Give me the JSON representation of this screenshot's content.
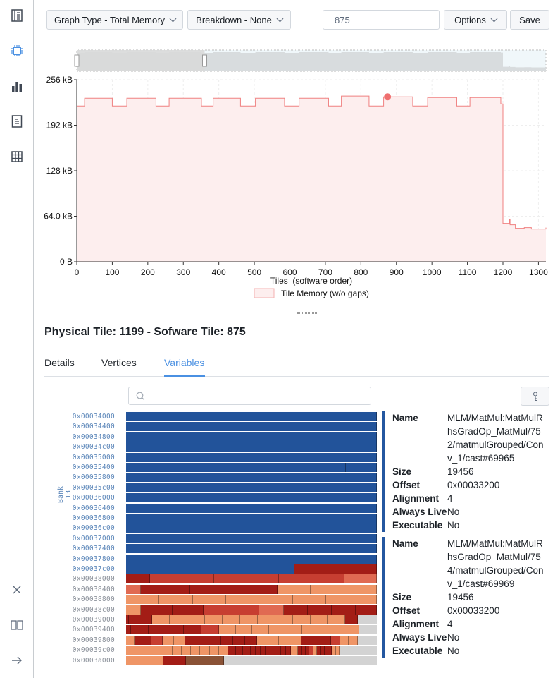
{
  "sidebar": {
    "items": [
      {
        "icon": "report-icon",
        "active": false
      },
      {
        "icon": "chip-icon",
        "active": true
      },
      {
        "icon": "bar-chart-icon",
        "active": false
      },
      {
        "icon": "document-icon",
        "active": false
      },
      {
        "icon": "table-icon",
        "active": false
      }
    ],
    "bottom": [
      {
        "icon": "close-icon"
      },
      {
        "icon": "book-icon"
      },
      {
        "icon": "arrow-right-icon"
      }
    ]
  },
  "toolbar": {
    "graph_type": "Graph Type - Total Memory",
    "breakdown": "Breakdown - None",
    "tile_value": "875",
    "options": "Options",
    "save": "Save"
  },
  "chart_data": {
    "type": "area",
    "xlabel": "Tiles  (software order)",
    "ylabel": "",
    "xlim": [
      0,
      1321
    ],
    "ylim": [
      0,
      256
    ],
    "xticks": [
      0,
      100,
      200,
      300,
      400,
      500,
      600,
      700,
      800,
      900,
      1000,
      1100,
      1200,
      1300
    ],
    "yticks": [
      {
        "v": 0,
        "label": "0 B"
      },
      {
        "v": 64,
        "label": "64.0 kB"
      },
      {
        "v": 128,
        "label": "128 kB"
      },
      {
        "v": 192,
        "label": "192 kB"
      },
      {
        "v": 256,
        "label": "256 kB"
      }
    ],
    "grid": true,
    "legend": "bottom",
    "series": [
      {
        "name": "Tile Memory (w/o gaps)",
        "color": "#f08080",
        "fill": "#fdeeee",
        "step": true,
        "points": [
          [
            0,
            219
          ],
          [
            22,
            230
          ],
          [
            100,
            219
          ],
          [
            141,
            230
          ],
          [
            223,
            219
          ],
          [
            260,
            230
          ],
          [
            351,
            219
          ],
          [
            384,
            230
          ],
          [
            461,
            219
          ],
          [
            503,
            230
          ],
          [
            585,
            219
          ],
          [
            626,
            230
          ],
          [
            709,
            219
          ],
          [
            745,
            233
          ],
          [
            823,
            219
          ],
          [
            864,
            232
          ],
          [
            946,
            219
          ],
          [
            988,
            231
          ],
          [
            1070,
            219
          ],
          [
            1107,
            231
          ],
          [
            1194,
            222
          ],
          [
            1200,
            54
          ],
          [
            1215,
            54
          ],
          [
            1218,
            60
          ],
          [
            1220,
            52
          ],
          [
            1235,
            47
          ],
          [
            1260,
            48
          ],
          [
            1280,
            46
          ],
          [
            1321,
            48
          ]
        ]
      }
    ],
    "selected_point": {
      "x": 875,
      "y": 232
    },
    "brush_range": [
      0,
      360
    ]
  },
  "tile": {
    "heading": "Physical Tile: 1199 - Sofware Tile: 875"
  },
  "tabs": [
    {
      "label": "Details"
    },
    {
      "label": "Vertices"
    },
    {
      "label": "Variables",
      "active": true
    }
  ],
  "variables": {
    "search_placeholder": "",
    "bank_label": "Bank 13",
    "colors": {
      "B": "#22539a",
      "D": "#a31d16",
      "M": "#c73e31",
      "L": "#e06a52",
      "P": "#ef9566",
      "W": "#8a5236",
      "G": "#d3d3d3"
    },
    "rows": [
      {
        "addr": "0x00034000",
        "bank": true,
        "segs": [
          [
            1,
            "B"
          ]
        ]
      },
      {
        "addr": "0x00034400",
        "bank": true,
        "segs": [
          [
            1,
            "B"
          ]
        ]
      },
      {
        "addr": "0x00034800",
        "bank": true,
        "segs": [
          [
            1,
            "B"
          ]
        ]
      },
      {
        "addr": "0x00034c00",
        "bank": true,
        "segs": [
          [
            1,
            "B"
          ]
        ]
      },
      {
        "addr": "0x00035000",
        "bank": true,
        "segs": [
          [
            1,
            "B"
          ]
        ]
      },
      {
        "addr": "0x00035400",
        "bank": true,
        "segs": [
          [
            0.875,
            "B"
          ],
          [
            0.125,
            "B"
          ]
        ]
      },
      {
        "addr": "0x00035800",
        "bank": true,
        "segs": [
          [
            1,
            "B"
          ]
        ]
      },
      {
        "addr": "0x00035c00",
        "bank": true,
        "segs": [
          [
            1,
            "B"
          ]
        ]
      },
      {
        "addr": "0x00036000",
        "bank": true,
        "segs": [
          [
            1,
            "B"
          ]
        ]
      },
      {
        "addr": "0x00036400",
        "bank": true,
        "segs": [
          [
            1,
            "B"
          ]
        ]
      },
      {
        "addr": "0x00036800",
        "bank": true,
        "segs": [
          [
            1,
            "B"
          ]
        ]
      },
      {
        "addr": "0x00036c00",
        "bank": true,
        "segs": [
          [
            1,
            "B"
          ]
        ]
      },
      {
        "addr": "0x00037000",
        "bank": true,
        "segs": [
          [
            1,
            "B"
          ]
        ]
      },
      {
        "addr": "0x00037400",
        "bank": true,
        "segs": [
          [
            1,
            "B"
          ]
        ]
      },
      {
        "addr": "0x00037800",
        "bank": true,
        "segs": [
          [
            1,
            "B"
          ]
        ]
      },
      {
        "addr": "0x00037c00",
        "bank": true,
        "segs": [
          [
            0.5,
            "B"
          ],
          [
            0.17,
            "B"
          ],
          [
            0.33,
            "D"
          ]
        ]
      },
      {
        "addr": "0x00038000",
        "bank": false,
        "segs": [
          [
            0.095,
            "D"
          ],
          [
            0.255,
            "M"
          ],
          [
            0.26,
            "M"
          ],
          [
            0.26,
            "M"
          ],
          [
            0.13,
            "L"
          ]
        ]
      },
      {
        "addr": "0x00038400",
        "bank": false,
        "segs": [
          [
            0.06,
            "L"
          ],
          [
            0.195,
            "D"
          ],
          [
            0.19,
            "D"
          ],
          [
            0.16,
            "D"
          ],
          [
            0.13,
            "P"
          ],
          [
            0.135,
            "P"
          ],
          [
            0.13,
            "P"
          ]
        ]
      },
      {
        "addr": "0x00038800",
        "bank": false,
        "segs": [
          [
            0.133,
            "P"
          ],
          [
            0.133,
            "P"
          ],
          [
            0.133,
            "P"
          ],
          [
            0.133,
            "P"
          ],
          [
            0.133,
            "P"
          ],
          [
            0.133,
            "P"
          ],
          [
            0.133,
            "P"
          ],
          [
            0.069,
            "P"
          ]
        ]
      },
      {
        "addr": "0x00038c00",
        "bank": false,
        "segs": [
          [
            0.06,
            "P"
          ],
          [
            0.125,
            "D"
          ],
          [
            0.125,
            "D"
          ],
          [
            0.115,
            "M"
          ],
          [
            0.105,
            "M"
          ],
          [
            0.1,
            "L"
          ],
          [
            0.095,
            "D"
          ],
          [
            0.095,
            "D"
          ],
          [
            0.095,
            "D"
          ],
          [
            0.085,
            "D"
          ]
        ]
      },
      {
        "addr": "0x00039000",
        "bank": false,
        "segs": [
          [
            0.012,
            "D"
          ],
          [
            0.093,
            "D"
          ],
          [
            0.07,
            "P"
          ],
          [
            0.07,
            "P"
          ],
          [
            0.07,
            "P"
          ],
          [
            0.07,
            "P"
          ],
          [
            0.07,
            "P"
          ],
          [
            0.07,
            "P"
          ],
          [
            0.07,
            "P"
          ],
          [
            0.07,
            "P"
          ],
          [
            0.07,
            "P"
          ],
          [
            0.07,
            "P"
          ],
          [
            0.07,
            "P"
          ],
          [
            0.05,
            "D"
          ]
        ]
      },
      {
        "addr": "0x00039400",
        "bank": false,
        "segs": [
          [
            0.02,
            "D"
          ],
          [
            0.07,
            "D"
          ],
          [
            0.07,
            "D"
          ],
          [
            0.07,
            "D"
          ],
          [
            0.07,
            "D"
          ],
          [
            0.07,
            "M"
          ],
          [
            0.068,
            "P"
          ],
          [
            0.066,
            "P"
          ],
          [
            0.066,
            "P"
          ],
          [
            0.066,
            "P"
          ],
          [
            0.066,
            "P"
          ],
          [
            0.066,
            "P"
          ],
          [
            0.066,
            "P"
          ],
          [
            0.066,
            "P"
          ],
          [
            0.03,
            "P"
          ]
        ]
      },
      {
        "addr": "0x00039800",
        "bank": false,
        "segs": [
          [
            0.035,
            "P"
          ],
          [
            0.065,
            "D"
          ],
          [
            0.045,
            "M"
          ],
          [
            0.045,
            "P"
          ],
          [
            0.045,
            "P"
          ],
          [
            0.048,
            "D"
          ],
          [
            0.048,
            "D"
          ],
          [
            0.048,
            "D"
          ],
          [
            0.048,
            "D"
          ],
          [
            0.048,
            "D"
          ],
          [
            0.048,
            "D"
          ],
          [
            0.044,
            "P"
          ],
          [
            0.044,
            "P"
          ],
          [
            0.044,
            "P"
          ],
          [
            0.044,
            "P"
          ],
          [
            0.04,
            "D"
          ],
          [
            0.04,
            "D"
          ],
          [
            0.04,
            "D"
          ],
          [
            0.035,
            "M"
          ],
          [
            0.035,
            "P"
          ],
          [
            0.035,
            "P"
          ]
        ]
      },
      {
        "addr": "0x00039c00",
        "bank": false,
        "segs": [
          [
            0.037,
            "P"
          ],
          [
            0.037,
            "P"
          ],
          [
            0.037,
            "P"
          ],
          [
            0.037,
            "P"
          ],
          [
            0.037,
            "P"
          ],
          [
            0.037,
            "P"
          ],
          [
            0.037,
            "P"
          ],
          [
            0.037,
            "P"
          ],
          [
            0.037,
            "P"
          ],
          [
            0.037,
            "P"
          ],
          [
            0.037,
            "P"
          ],
          [
            0.03,
            "D"
          ],
          [
            0.03,
            "D"
          ],
          [
            0.03,
            "D"
          ],
          [
            0.02,
            "D"
          ],
          [
            0.02,
            "D"
          ],
          [
            0.02,
            "D"
          ],
          [
            0.02,
            "D"
          ],
          [
            0.02,
            "D"
          ],
          [
            0.02,
            "D"
          ],
          [
            0.02,
            "D"
          ],
          [
            0.02,
            "D"
          ],
          [
            0.03,
            "P"
          ],
          [
            0.015,
            "D"
          ],
          [
            0.015,
            "D"
          ],
          [
            0.015,
            "D"
          ],
          [
            0.015,
            "M"
          ],
          [
            0.015,
            "P"
          ],
          [
            0.015,
            "D"
          ],
          [
            0.015,
            "D"
          ],
          [
            0.015,
            "D"
          ],
          [
            0.015,
            "D"
          ],
          [
            0.015,
            "P"
          ],
          [
            0.015,
            "P"
          ]
        ]
      },
      {
        "addr": "0x0003a000",
        "bank": false,
        "segs": [
          [
            0.15,
            "P"
          ],
          [
            0.09,
            "D"
          ],
          [
            0.15,
            "W"
          ],
          [
            0.61,
            "G"
          ]
        ]
      }
    ],
    "details": [
      {
        "fields": [
          {
            "k": "Name",
            "v": "MLM/MatMul:MatMulRhsGradOp_MatMul/752/matmulGrouped/Conv_1/cast#69965"
          },
          {
            "k": "Size",
            "v": "19456"
          },
          {
            "k": "Offset",
            "v": "0x00033200"
          },
          {
            "k": "Alignment",
            "v": "4"
          },
          {
            "k": "Always Live",
            "v": "No"
          },
          {
            "k": "Executable",
            "v": "No"
          }
        ]
      },
      {
        "fields": [
          {
            "k": "Name",
            "v": "MLM/MatMul:MatMulRhsGradOp_MatMul/754/matmulGrouped/Conv_1/cast#69969"
          },
          {
            "k": "Size",
            "v": "19456"
          },
          {
            "k": "Offset",
            "v": "0x00033200"
          },
          {
            "k": "Alignment",
            "v": "4"
          },
          {
            "k": "Always Live",
            "v": "No"
          },
          {
            "k": "Executable",
            "v": "No"
          }
        ]
      }
    ]
  }
}
